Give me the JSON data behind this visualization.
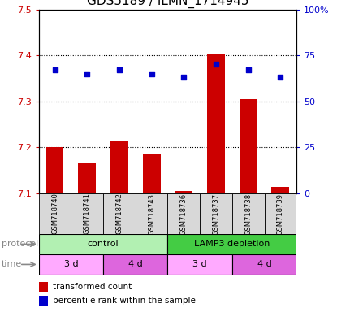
{
  "title": "GDS5189 / ILMN_1714945",
  "samples": [
    "GSM718740",
    "GSM718741",
    "GSM718742",
    "GSM718743",
    "GSM718736",
    "GSM718737",
    "GSM718738",
    "GSM718739"
  ],
  "transformed_count": [
    7.2,
    7.165,
    7.215,
    7.185,
    7.105,
    7.402,
    7.305,
    7.115
  ],
  "percentile_rank": [
    67,
    65,
    67,
    65,
    63,
    70,
    67,
    63
  ],
  "ylim_left": [
    7.1,
    7.5
  ],
  "ylim_right": [
    0,
    100
  ],
  "yticks_left": [
    7.1,
    7.2,
    7.3,
    7.4,
    7.5
  ],
  "yticks_right": [
    0,
    25,
    50,
    75,
    100
  ],
  "ytick_labels_right": [
    "0",
    "25",
    "50",
    "75",
    "100%"
  ],
  "bar_color": "#cc0000",
  "dot_color": "#0000cc",
  "protocol_control_color": "#b2f0b2",
  "protocol_depletion_color": "#44cc44",
  "time_3d_color": "#ffaaff",
  "time_4d_color": "#dd66dd",
  "protocol_labels": [
    "control",
    "LAMP3 depletion"
  ],
  "time_labels": [
    "3 d",
    "4 d",
    "3 d",
    "4 d"
  ],
  "xlabel_protocol": "protocol",
  "xlabel_time": "time",
  "legend_bar_label": "transformed count",
  "legend_dot_label": "percentile rank within the sample",
  "background_color": "#ffffff",
  "tick_label_color_left": "#cc0000",
  "tick_label_color_right": "#0000cc",
  "title_fontsize": 11,
  "axis_fontsize": 8,
  "sample_fontsize": 6,
  "row_fontsize": 8,
  "legend_fontsize": 7.5
}
